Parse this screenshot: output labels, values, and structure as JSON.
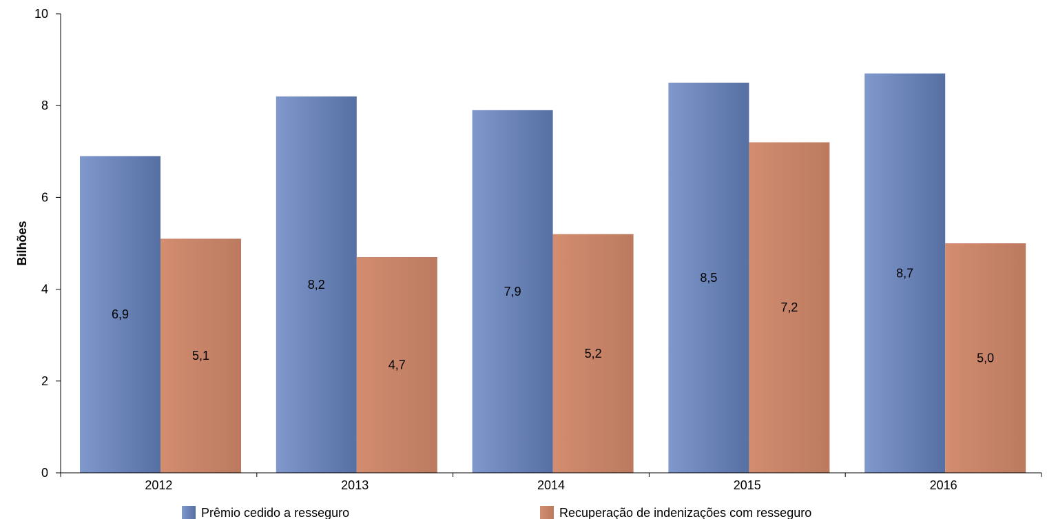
{
  "chart_data": {
    "type": "bar",
    "title": "",
    "xlabel": "",
    "ylabel": "Bilhões",
    "ylim": [
      0,
      10
    ],
    "yticks": [
      0,
      2,
      4,
      6,
      8,
      10
    ],
    "grid": false,
    "legend_position": "bottom",
    "categories": [
      "2012",
      "2013",
      "2014",
      "2015",
      "2016"
    ],
    "series": [
      {
        "name": "Prêmio cedido a resseguro",
        "values": [
          6.9,
          8.2,
          7.9,
          8.5,
          8.7
        ],
        "labels": [
          "6,9",
          "8,2",
          "7,9",
          "8,5",
          "8,7"
        ],
        "color_light": "#8098cc",
        "color_dark": "#5670a4"
      },
      {
        "name": "Recuperação de indenizações com resseguro",
        "values": [
          5.1,
          4.7,
          5.2,
          7.2,
          5.0
        ],
        "labels": [
          "5,1",
          "4,7",
          "5,2",
          "7,2",
          "5,0"
        ],
        "color_light": "#d38d70",
        "color_dark": "#bb7a5f"
      }
    ]
  }
}
